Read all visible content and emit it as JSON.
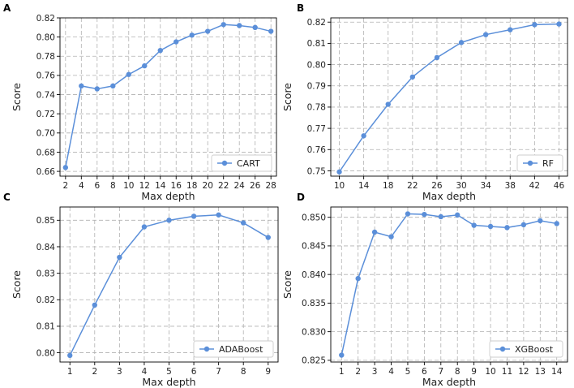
{
  "chart_data": [
    {
      "panel_letter": "A",
      "type": "line",
      "x": [
        2,
        4,
        6,
        8,
        10,
        12,
        14,
        16,
        18,
        20,
        22,
        24,
        26,
        28
      ],
      "series": [
        {
          "name": "CART",
          "values": [
            0.664,
            0.749,
            0.746,
            0.749,
            0.761,
            0.77,
            0.786,
            0.795,
            0.802,
            0.806,
            0.813,
            0.812,
            0.81,
            0.806
          ]
        }
      ],
      "xlabel": "Max depth",
      "ylabel": "Score",
      "xlim": [
        1.3,
        28.7
      ],
      "ylim": [
        0.655,
        0.82
      ],
      "xticks": [
        2,
        4,
        6,
        8,
        10,
        12,
        14,
        16,
        18,
        20,
        22,
        24,
        26,
        28
      ],
      "yticks": [
        0.66,
        0.68,
        0.7,
        0.72,
        0.74,
        0.76,
        0.78,
        0.8,
        0.82
      ],
      "ytick_labels": [
        "0.66",
        "0.68",
        "0.70",
        "0.72",
        "0.74",
        "0.76",
        "0.78",
        "0.80",
        "0.82"
      ],
      "legend": "bottom-right",
      "grid": true,
      "color": "#5b8fd9"
    },
    {
      "panel_letter": "B",
      "type": "line",
      "x": [
        10,
        14,
        18,
        22,
        26,
        30,
        34,
        38,
        42,
        46
      ],
      "series": [
        {
          "name": "RF",
          "values": [
            0.7495,
            0.7665,
            0.7813,
            0.7942,
            0.8033,
            0.8104,
            0.8141,
            0.8164,
            0.8188,
            0.8191
          ]
        }
      ],
      "xlabel": "Max depth",
      "ylabel": "Score",
      "xlim": [
        8.6,
        47.4
      ],
      "ylim": [
        0.7475,
        0.822
      ],
      "xticks": [
        10,
        14,
        18,
        22,
        26,
        30,
        34,
        38,
        42,
        46
      ],
      "yticks": [
        0.75,
        0.76,
        0.77,
        0.78,
        0.79,
        0.8,
        0.81,
        0.82
      ],
      "ytick_labels": [
        "0.75",
        "0.76",
        "0.77",
        "0.78",
        "0.79",
        "0.80",
        "0.81",
        "0.82"
      ],
      "legend": "bottom-right",
      "grid": true,
      "color": "#5b8fd9"
    },
    {
      "panel_letter": "C",
      "type": "line",
      "x": [
        1,
        2,
        3,
        4,
        5,
        6,
        7,
        8,
        9
      ],
      "series": [
        {
          "name": "ADABoost",
          "values": [
            0.799,
            0.818,
            0.836,
            0.8475,
            0.85,
            0.8515,
            0.852,
            0.849,
            0.8435
          ]
        }
      ],
      "xlabel": "Max depth",
      "ylabel": "Score",
      "xlim": [
        0.6,
        9.4
      ],
      "ylim": [
        0.7965,
        0.855
      ],
      "xticks": [
        1,
        2,
        3,
        4,
        5,
        6,
        7,
        8,
        9
      ],
      "yticks": [
        0.8,
        0.81,
        0.82,
        0.83,
        0.84,
        0.85
      ],
      "ytick_labels": [
        "0.80",
        "0.81",
        "0.82",
        "0.83",
        "0.84",
        "0.85"
      ],
      "legend": "bottom-right",
      "grid": true,
      "color": "#5b8fd9"
    },
    {
      "panel_letter": "D",
      "type": "line",
      "x": [
        1,
        2,
        3,
        4,
        5,
        6,
        7,
        8,
        9,
        10,
        11,
        12,
        13,
        14
      ],
      "series": [
        {
          "name": "XGBoost",
          "values": [
            0.8259,
            0.8393,
            0.8474,
            0.8466,
            0.8506,
            0.8505,
            0.8501,
            0.8504,
            0.8486,
            0.8484,
            0.8482,
            0.8487,
            0.8494,
            0.8489
          ]
        }
      ],
      "xlabel": "Max depth",
      "ylabel": "Score",
      "xlim": [
        0.35,
        14.65
      ],
      "ylim": [
        0.8247,
        0.8518
      ],
      "xticks": [
        1,
        2,
        3,
        4,
        5,
        6,
        7,
        8,
        9,
        10,
        11,
        12,
        13,
        14
      ],
      "yticks": [
        0.825,
        0.83,
        0.835,
        0.84,
        0.845,
        0.85
      ],
      "ytick_labels": [
        "0.825",
        "0.830",
        "0.835",
        "0.840",
        "0.845",
        "0.850"
      ],
      "legend": "bottom-right",
      "grid": true,
      "color": "#5b8fd9"
    }
  ]
}
